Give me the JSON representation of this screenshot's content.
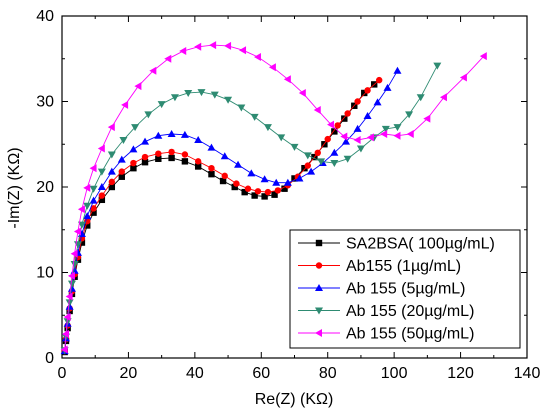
{
  "chart_data": {
    "type": "scatter",
    "title": "",
    "xlabel": "Re(Z) (KΩ)",
    "ylabel": "-Im(Z) (KΩ)",
    "xlim": [
      0,
      140
    ],
    "ylim": [
      0,
      40
    ],
    "xticks": [
      0,
      20,
      40,
      60,
      80,
      100,
      120,
      140
    ],
    "yticks": [
      0,
      10,
      20,
      30,
      40
    ],
    "grid": false,
    "legend_position": "bottom-right",
    "series": [
      {
        "name": "SA2BSA( 100µg/mL)",
        "color": "#000000",
        "marker": "square",
        "x": [
          0.8,
          1.2,
          1.7,
          2.3,
          3.0,
          3.8,
          4.8,
          6.0,
          7.6,
          9.5,
          12.0,
          15.0,
          18.0,
          21.5,
          25.0,
          29.0,
          33.0,
          37.0,
          41.0,
          45.0,
          48.5,
          52.0,
          55.0,
          58.0,
          61.0,
          64.0,
          67.0,
          70.0,
          73.0,
          76.0,
          79.0,
          82.0,
          85.0,
          88.0,
          91.0,
          94.0
        ],
        "y": [
          0.7,
          2.0,
          3.5,
          5.5,
          7.5,
          9.5,
          11.5,
          13.5,
          15.5,
          17.0,
          18.5,
          20.0,
          21.2,
          22.2,
          22.9,
          23.3,
          23.4,
          23.0,
          22.4,
          21.5,
          20.7,
          20.0,
          19.4,
          19.0,
          18.9,
          19.1,
          19.8,
          21.0,
          22.2,
          23.5,
          25.0,
          26.5,
          28.0,
          29.5,
          31.0,
          32.0
        ]
      },
      {
        "name": "Ab155 (1µg/mL)",
        "color": "#ff0000",
        "marker": "circle",
        "x": [
          0.8,
          1.2,
          1.7,
          2.3,
          3.0,
          3.8,
          4.8,
          6.0,
          7.6,
          9.5,
          12.0,
          15.0,
          18.0,
          21.5,
          25.0,
          29.0,
          33.0,
          37.0,
          41.0,
          45.0,
          49.0,
          52.5,
          56.0,
          59.0,
          62.0,
          65.0,
          68.0,
          71.0,
          74.0,
          77.0,
          80.0,
          83.0,
          86.0,
          89.0,
          92.0,
          95.5
        ],
        "y": [
          0.8,
          2.2,
          3.8,
          5.8,
          7.8,
          9.8,
          11.8,
          14.0,
          16.0,
          17.5,
          19.0,
          20.6,
          21.8,
          22.8,
          23.5,
          23.9,
          24.1,
          23.8,
          23.0,
          22.2,
          21.3,
          20.4,
          19.8,
          19.5,
          19.4,
          19.6,
          20.2,
          21.2,
          22.5,
          24.0,
          25.6,
          27.2,
          28.6,
          30.0,
          31.3,
          32.5
        ]
      },
      {
        "name": "Ab 155 (5µg/mL)",
        "color": "#0000ff",
        "marker": "triangle-up",
        "x": [
          0.8,
          1.2,
          1.7,
          2.3,
          3.0,
          3.8,
          4.8,
          6.0,
          7.6,
          9.5,
          12.0,
          15.0,
          18.0,
          21.5,
          25.0,
          29.0,
          33.0,
          37.0,
          41.0,
          45.0,
          49.0,
          53.0,
          57.0,
          61.0,
          64.5,
          68.0,
          71.5,
          75.0,
          78.5,
          82.0,
          85.5,
          89.0,
          92.0,
          95.0,
          98.0,
          101.0
        ],
        "y": [
          0.8,
          2.3,
          4.0,
          6.0,
          8.1,
          10.2,
          12.3,
          14.5,
          16.6,
          18.4,
          20.0,
          21.8,
          23.2,
          24.4,
          25.3,
          26.0,
          26.2,
          26.1,
          25.5,
          24.6,
          23.6,
          22.6,
          21.6,
          20.9,
          20.5,
          20.5,
          21.0,
          21.8,
          22.8,
          24.0,
          25.3,
          26.8,
          28.3,
          29.9,
          31.6,
          33.6
        ]
      },
      {
        "name": "Ab 155 (20µg/mL)",
        "color": "#2e8b72",
        "marker": "triangle-down",
        "x": [
          0.8,
          1.2,
          1.7,
          2.3,
          3.0,
          3.8,
          4.8,
          6.0,
          7.6,
          9.5,
          12.0,
          15.0,
          18.5,
          22.0,
          26.0,
          30.0,
          34.0,
          38.0,
          42.0,
          46.0,
          50.0,
          54.0,
          58.0,
          62.0,
          66.0,
          70.0,
          74.0,
          78.0,
          82.0,
          86.0,
          90.0,
          94.0,
          97.5,
          101.0,
          104.5,
          108.0,
          113.0
        ],
        "y": [
          0.9,
          2.5,
          4.3,
          6.5,
          8.7,
          11.0,
          13.3,
          15.6,
          17.8,
          19.8,
          21.8,
          23.8,
          25.5,
          27.0,
          28.5,
          29.7,
          30.5,
          31.0,
          31.1,
          30.8,
          30.2,
          29.3,
          28.2,
          27.0,
          25.8,
          24.7,
          23.7,
          23.0,
          22.8,
          23.3,
          24.5,
          25.8,
          26.8,
          27.0,
          28.5,
          30.5,
          34.2
        ]
      },
      {
        "name": "Ab 155 (50µg/mL)",
        "color": "#ff00ff",
        "marker": "triangle-left",
        "x": [
          0.8,
          1.2,
          1.7,
          2.3,
          3.0,
          3.8,
          4.8,
          6.0,
          7.6,
          9.5,
          12.0,
          15.0,
          19.0,
          23.0,
          27.5,
          32.0,
          36.5,
          41.0,
          45.5,
          50.0,
          54.5,
          59.0,
          63.5,
          68.0,
          72.5,
          77.0,
          81.0,
          85.0,
          89.0,
          93.0,
          97.0,
          101.0,
          105.0,
          110.0,
          115.0,
          121.0,
          127.0
        ],
        "y": [
          1.0,
          2.8,
          4.8,
          7.2,
          9.6,
          12.2,
          14.8,
          17.4,
          19.9,
          22.2,
          24.5,
          27.0,
          29.6,
          31.8,
          33.6,
          35.0,
          35.9,
          36.4,
          36.6,
          36.5,
          36.0,
          35.2,
          34.0,
          32.6,
          31.0,
          29.0,
          27.3,
          25.9,
          25.5,
          25.8,
          26.2,
          26.0,
          26.2,
          28.0,
          30.5,
          32.8,
          35.3
        ]
      }
    ]
  }
}
